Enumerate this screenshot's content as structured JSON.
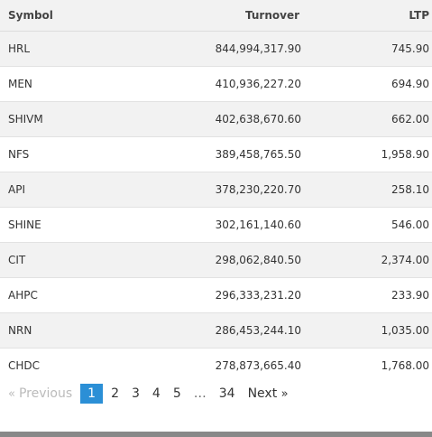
{
  "table": {
    "headers": {
      "symbol": "Symbol",
      "turnover": "Turnover",
      "ltp": "LTP"
    },
    "rows": [
      {
        "symbol": "HRL",
        "turnover": "844,994,317.90",
        "ltp": "745.90"
      },
      {
        "symbol": "MEN",
        "turnover": "410,936,227.20",
        "ltp": "694.90"
      },
      {
        "symbol": "SHIVM",
        "turnover": "402,638,670.60",
        "ltp": "662.00"
      },
      {
        "symbol": "NFS",
        "turnover": "389,458,765.50",
        "ltp": "1,958.90"
      },
      {
        "symbol": "API",
        "turnover": "378,230,220.70",
        "ltp": "258.10"
      },
      {
        "symbol": "SHINE",
        "turnover": "302,161,140.60",
        "ltp": "546.00"
      },
      {
        "symbol": "CIT",
        "turnover": "298,062,840.50",
        "ltp": "2,374.00"
      },
      {
        "symbol": "AHPC",
        "turnover": "296,333,231.20",
        "ltp": "233.90"
      },
      {
        "symbol": "NRN",
        "turnover": "286,453,244.10",
        "ltp": "1,035.00"
      },
      {
        "symbol": "CHDC",
        "turnover": "278,873,665.40",
        "ltp": "1,768.00"
      }
    ]
  },
  "pagination": {
    "prev_arrow": "«",
    "prev_label": "Previous",
    "pages": [
      "1",
      "2",
      "3",
      "4",
      "5"
    ],
    "ellipsis": "…",
    "last_page": "34",
    "next_label": "Next",
    "next_arrow": "»",
    "current_page": "1"
  },
  "colors": {
    "active_page_bg": "#2b8fd6",
    "stripe": "#f2f2f2"
  }
}
